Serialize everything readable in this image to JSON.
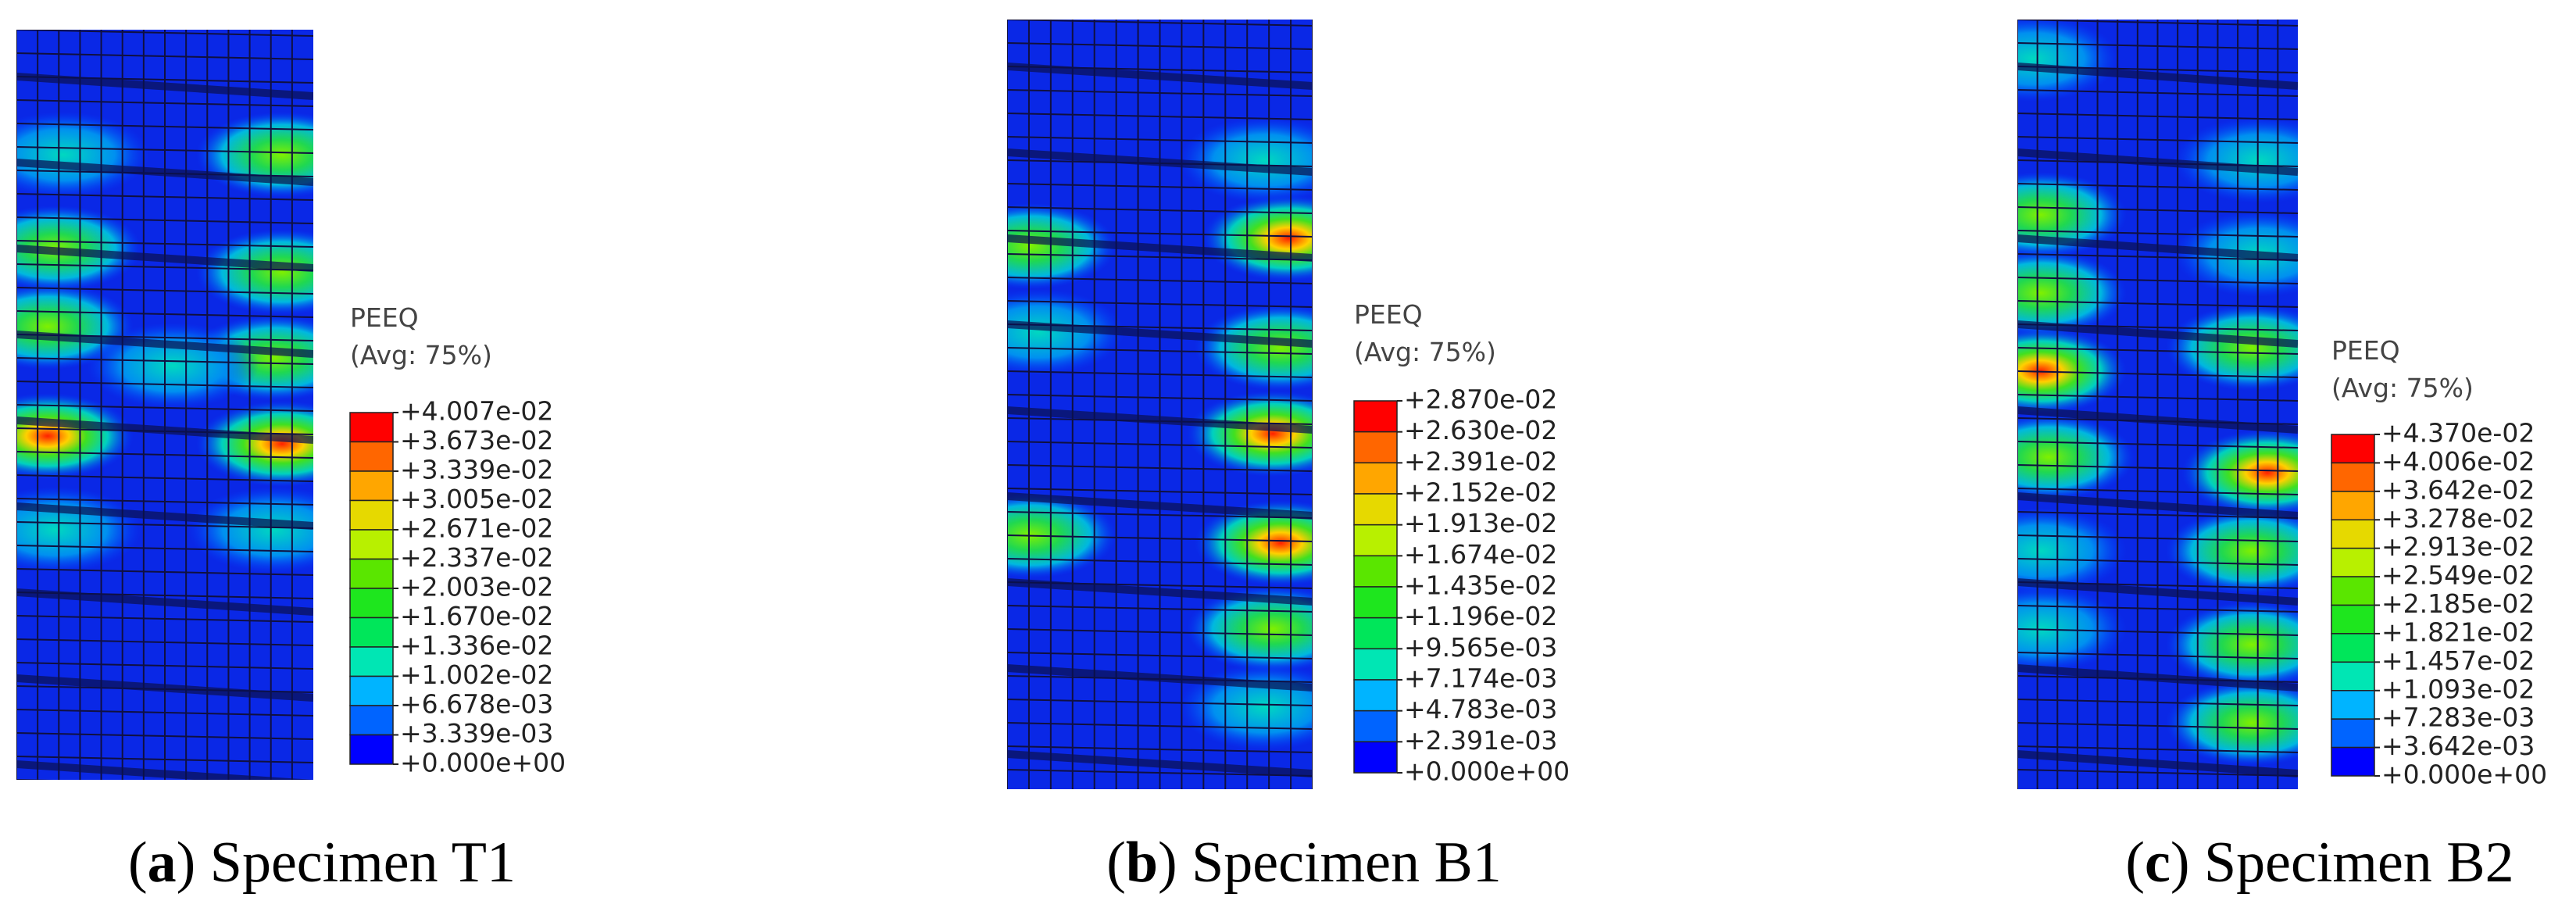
{
  "panels": [
    {
      "caption": [
        "(",
        "a",
        ") Specimen T1"
      ],
      "legend_title": "PEEQ",
      "legend_subtitle": "(Avg: 75%)",
      "levels": [
        "+4.007e-02",
        "+3.673e-02",
        "+3.339e-02",
        "+3.005e-02",
        "+2.671e-02",
        "+2.337e-02",
        "+2.003e-02",
        "+1.670e-02",
        "+1.336e-02",
        "+1.002e-02",
        "+6.678e-03",
        "+3.339e-03",
        "+0.000e+00"
      ]
    },
    {
      "caption": [
        "(",
        "b",
        ") Specimen B1"
      ],
      "legend_title": "PEEQ",
      "legend_subtitle": "(Avg: 75%)",
      "levels": [
        "+2.870e-02",
        "+2.630e-02",
        "+2.391e-02",
        "+2.152e-02",
        "+1.913e-02",
        "+1.674e-02",
        "+1.435e-02",
        "+1.196e-02",
        "+9.565e-03",
        "+7.174e-03",
        "+4.783e-03",
        "+2.391e-03",
        "+0.000e+00"
      ]
    },
    {
      "caption": [
        "(",
        "c",
        ") Specimen B2"
      ],
      "legend_title": "PEEQ",
      "legend_subtitle": "(Avg: 75%)",
      "levels": [
        "+4.370e-02",
        "+4.006e-02",
        "+3.642e-02",
        "+3.278e-02",
        "+2.913e-02",
        "+2.549e-02",
        "+2.185e-02",
        "+1.821e-02",
        "+1.457e-02",
        "+1.093e-02",
        "+7.283e-03",
        "+3.642e-03",
        "+0.000e+00"
      ]
    }
  ]
}
